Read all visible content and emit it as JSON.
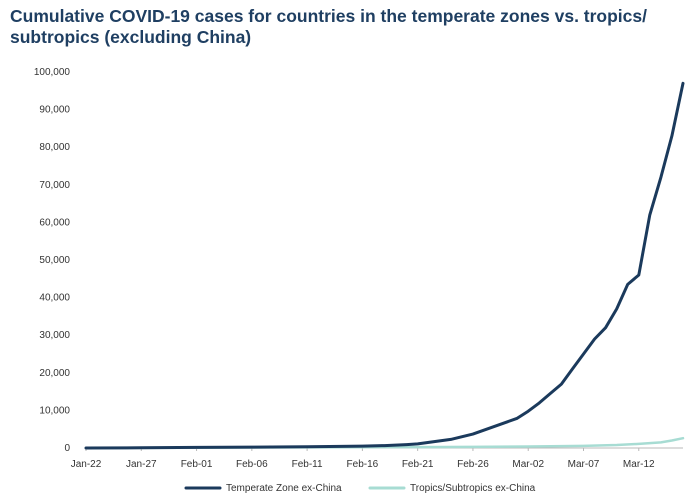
{
  "chart_data": {
    "type": "line",
    "title": "Cumulative COVID-19 cases for countries in the temperate zones vs. tropics/ subtropics (excluding China)",
    "xlabel": "",
    "ylabel": "",
    "ylim": [
      0,
      100000
    ],
    "yticks": [
      0,
      10000,
      20000,
      30000,
      40000,
      50000,
      60000,
      70000,
      80000,
      90000,
      100000
    ],
    "ytick_labels": [
      "0",
      "10,000",
      "20,000",
      "30,000",
      "40,000",
      "50,000",
      "60,000",
      "70,000",
      "80,000",
      "90,000",
      "100,000"
    ],
    "x_start": "Jan-22",
    "x_end": "Mar-16",
    "xtick_labels": [
      "Jan-22",
      "Jan-27",
      "Feb-01",
      "Feb-06",
      "Feb-11",
      "Feb-16",
      "Feb-21",
      "Feb-26",
      "Mar-02",
      "Mar-07",
      "Mar-12"
    ],
    "grid": false,
    "legend_position": "bottom",
    "series": [
      {
        "name": "Temperate Zone ex-China",
        "color": "#1b3a5c",
        "x": [
          "Jan-22",
          "Jan-27",
          "Feb-01",
          "Feb-06",
          "Feb-11",
          "Feb-16",
          "Feb-18",
          "Feb-20",
          "Feb-21",
          "Feb-22",
          "Feb-24",
          "Feb-26",
          "Feb-28",
          "Mar-01",
          "Mar-02",
          "Mar-03",
          "Mar-04",
          "Mar-05",
          "Mar-06",
          "Mar-07",
          "Mar-08",
          "Mar-09",
          "Mar-10",
          "Mar-11",
          "Mar-12",
          "Mar-13",
          "Mar-14",
          "Mar-15",
          "Mar-16"
        ],
        "values": [
          0,
          50,
          150,
          250,
          350,
          500,
          650,
          900,
          1100,
          1500,
          2300,
          3700,
          5800,
          7900,
          9800,
          12000,
          14500,
          17000,
          21000,
          25000,
          29000,
          32000,
          37000,
          43500,
          46000,
          62000,
          72000,
          83000,
          97000
        ]
      },
      {
        "name": "Tropics/Subtropics ex-China",
        "color": "#a7dcd3",
        "x": [
          "Jan-22",
          "Jan-27",
          "Feb-01",
          "Feb-06",
          "Feb-11",
          "Feb-16",
          "Feb-21",
          "Feb-26",
          "Mar-02",
          "Mar-07",
          "Mar-10",
          "Mar-12",
          "Mar-14",
          "Mar-15",
          "Mar-16"
        ],
        "values": [
          0,
          30,
          80,
          120,
          160,
          200,
          240,
          300,
          400,
          550,
          800,
          1100,
          1500,
          2000,
          2600
        ]
      }
    ]
  }
}
